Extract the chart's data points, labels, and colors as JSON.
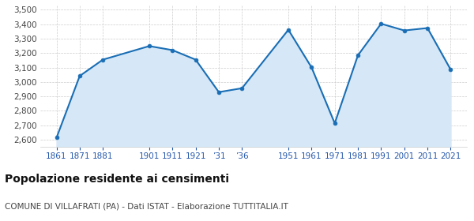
{
  "values": [
    2614,
    3042,
    3155,
    3249,
    3221,
    3155,
    2930,
    2957,
    3362,
    3101,
    2714,
    3185,
    3404,
    3357,
    3374,
    3086
  ],
  "x_positions": [
    0,
    1,
    2,
    4,
    5,
    6,
    7,
    8,
    10,
    11,
    12,
    13,
    14,
    15,
    16,
    17
  ],
  "x_tick_pos": [
    0,
    1,
    2,
    4,
    5,
    6,
    7,
    8,
    10,
    11,
    12,
    13,
    14,
    15,
    16,
    17
  ],
  "x_tick_labels": [
    "1861",
    "1871",
    "1881",
    "1901",
    "1911",
    "1921",
    "’31",
    "’36",
    "1951",
    "1961",
    "1971",
    "1981",
    "1991",
    "2001",
    "2011",
    "2021"
  ],
  "line_color": "#1a6eb5",
  "fill_color": "#d6e8f7",
  "marker_color": "#1a6eb5",
  "background_color": "#ffffff",
  "grid_color": "#cccccc",
  "title": "Popolazione residente ai censimenti",
  "subtitle": "COMUNE DI VILLAFRATI (PA) - Dati ISTAT - Elaborazione TUTTITALIA.IT",
  "ylim": [
    2550,
    3530
  ],
  "yticks": [
    2600,
    2700,
    2800,
    2900,
    3000,
    3100,
    3200,
    3300,
    3400,
    3500
  ],
  "title_fontsize": 10,
  "subtitle_fontsize": 7.5,
  "tick_label_color": "#2255aa"
}
